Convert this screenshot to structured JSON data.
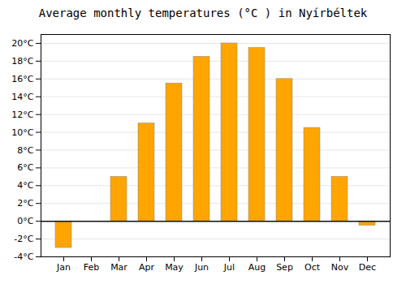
{
  "chart_data": {
    "type": "bar",
    "title": "Average monthly temperatures (°C ) in Nyírbéltek",
    "categories": [
      "Jan",
      "Feb",
      "Mar",
      "Apr",
      "May",
      "Jun",
      "Jul",
      "Aug",
      "Sep",
      "Oct",
      "Nov",
      "Dec"
    ],
    "values": [
      -3.0,
      0.0,
      5.0,
      11.0,
      15.5,
      18.5,
      20.0,
      19.5,
      16.0,
      10.5,
      5.0,
      -0.5
    ],
    "color": "#FFA500",
    "ylim": [
      -4,
      21
    ],
    "yticks": [
      {
        "value": -4,
        "label": "-4°C"
      },
      {
        "value": -2,
        "label": "-2°C"
      },
      {
        "value": 0,
        "label": "0°C"
      },
      {
        "value": 2,
        "label": "2°C"
      },
      {
        "value": 4,
        "label": "4°C"
      },
      {
        "value": 6,
        "label": "6°C"
      },
      {
        "value": 8,
        "label": "8°C"
      },
      {
        "value": 10,
        "label": "10°C"
      },
      {
        "value": 12,
        "label": "12°C"
      },
      {
        "value": 14,
        "label": "14°C"
      },
      {
        "value": 16,
        "label": "16°C"
      },
      {
        "value": 18,
        "label": "18°C"
      },
      {
        "value": 20,
        "label": "20°C"
      }
    ],
    "grid": true
  }
}
